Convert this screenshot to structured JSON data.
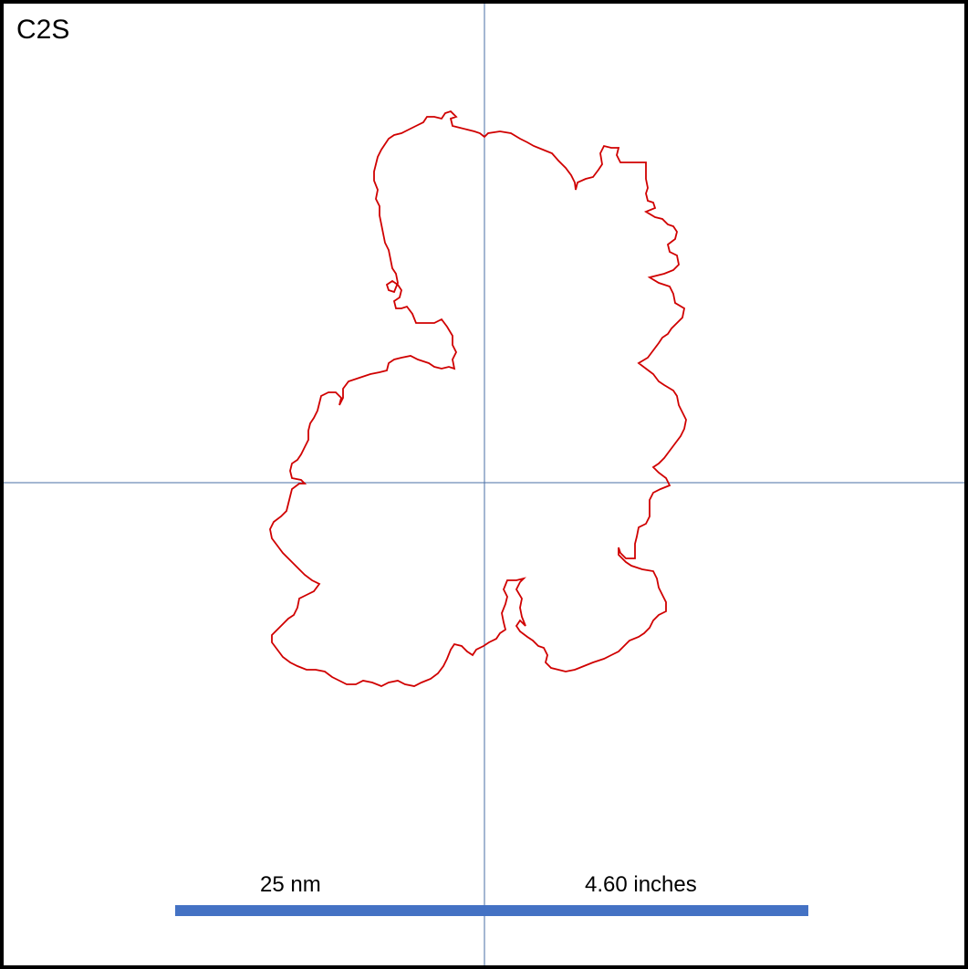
{
  "panel_label": "C2S",
  "scale_bar": {
    "left_label": "25 nm",
    "right_label": "4.60 inches"
  },
  "colors": {
    "outline": "#d00000",
    "crosshair": "#4a6fa5",
    "scale_bar": "#4472c4",
    "frame": "#000000"
  }
}
